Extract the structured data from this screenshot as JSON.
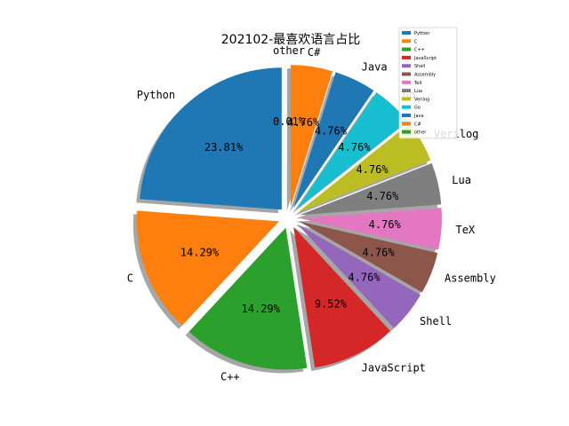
{
  "chart_data": {
    "type": "pie",
    "title": "202102-最喜欢语言占比",
    "slices": [
      {
        "label": "Python",
        "percent": "23.81%",
        "value": 23.81,
        "color": "#1f77b4"
      },
      {
        "label": "C",
        "percent": "14.29%",
        "value": 14.29,
        "color": "#ff7f0e"
      },
      {
        "label": "C++",
        "percent": "14.29%",
        "value": 14.29,
        "color": "#2ca02c"
      },
      {
        "label": "JavaScript",
        "percent": "9.52%",
        "value": 9.52,
        "color": "#d62728"
      },
      {
        "label": "Shell",
        "percent": "4.76%",
        "value": 4.76,
        "color": "#9467bd"
      },
      {
        "label": "Assembly",
        "percent": "4.76%",
        "value": 4.76,
        "color": "#8c564b"
      },
      {
        "label": "TeX",
        "percent": "4.76%",
        "value": 4.76,
        "color": "#e377c2"
      },
      {
        "label": "Lua",
        "percent": "4.76%",
        "value": 4.76,
        "color": "#7f7f7f"
      },
      {
        "label": "Verilog",
        "percent": "4.76%",
        "value": 4.76,
        "color": "#bcbd22"
      },
      {
        "label": "Go",
        "percent": "4.76%",
        "value": 4.76,
        "color": "#17becf"
      },
      {
        "label": "Java",
        "percent": "4.76%",
        "value": 4.76,
        "color": "#1f77b4"
      },
      {
        "label": "C#",
        "percent": "4.76%",
        "value": 4.76,
        "color": "#ff7f0e"
      },
      {
        "label": "other",
        "percent": "0.01%",
        "value": 0.01,
        "color": "#2ca02c"
      }
    ],
    "legend_position": "top-right",
    "shadow": true,
    "exploded": true
  }
}
